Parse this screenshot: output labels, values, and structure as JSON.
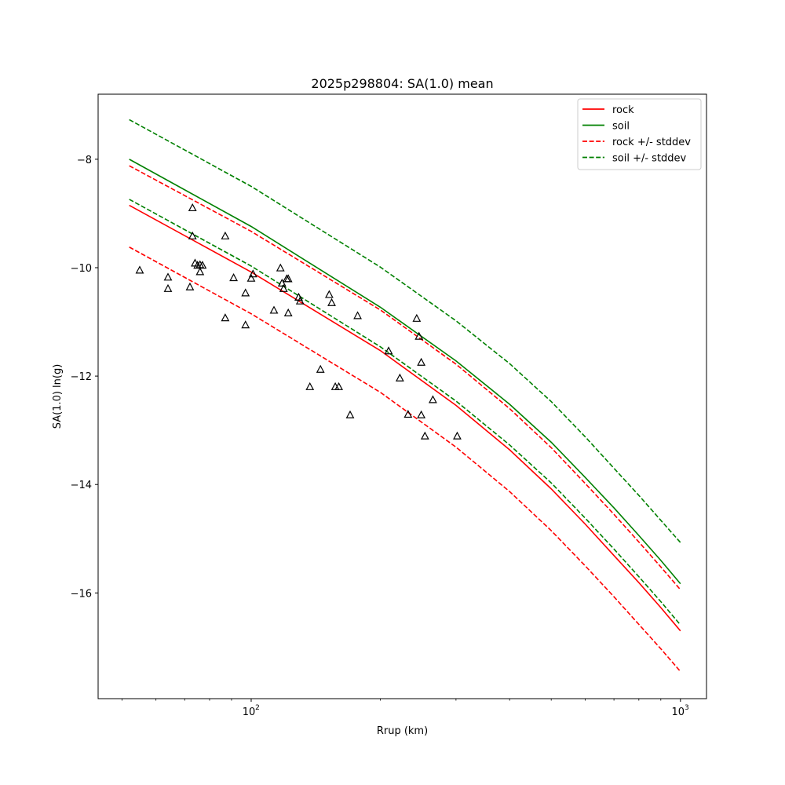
{
  "chart_data": {
    "type": "line",
    "title": "2025p298804: SA(1.0) mean",
    "xlabel": "Rrup (km)",
    "ylabel": "SA(1.0) ln(g)",
    "xscale": "log",
    "xlim": [
      44,
      1150
    ],
    "ylim": [
      -17.95,
      -6.8
    ],
    "x_ticks": [
      {
        "value": 100,
        "label": "10",
        "exp": "2"
      },
      {
        "value": 1000,
        "label": "10",
        "exp": "3"
      }
    ],
    "y_ticks": [
      {
        "value": -8,
        "label": "−8"
      },
      {
        "value": -10,
        "label": "−10"
      },
      {
        "value": -12,
        "label": "−12"
      },
      {
        "value": -14,
        "label": "−14"
      },
      {
        "value": -16,
        "label": "−16"
      }
    ],
    "grid": false,
    "legend_position": "top-right",
    "series": [
      {
        "name": "rock",
        "color": "#ff0000",
        "style": "solid",
        "x": [
          52,
          100,
          200,
          300,
          400,
          500,
          600,
          700,
          800,
          900,
          1000
        ],
        "y": [
          -8.85,
          -10.08,
          -11.53,
          -12.54,
          -13.36,
          -14.08,
          -14.73,
          -15.31,
          -15.81,
          -16.27,
          -16.7
        ]
      },
      {
        "name": "soil",
        "color": "#008000",
        "style": "solid",
        "x": [
          52,
          100,
          200,
          300,
          400,
          500,
          600,
          700,
          800,
          900,
          1000
        ],
        "y": [
          -8.0,
          -9.24,
          -10.73,
          -11.72,
          -12.52,
          -13.22,
          -13.87,
          -14.43,
          -14.94,
          -15.4,
          -15.83
        ]
      },
      {
        "name": "rock +/- stddev",
        "color": "#ff0000",
        "style": "dashed",
        "x": [
          52,
          100,
          200,
          300,
          400,
          500,
          600,
          700,
          800,
          900,
          1000
        ],
        "y": [
          -8.12,
          -9.33,
          -10.78,
          -11.78,
          -12.6,
          -13.32,
          -13.98,
          -14.55,
          -15.06,
          -15.52,
          -15.94
        ]
      },
      {
        "name": "rock +/- stddev",
        "color": "#ff0000",
        "style": "dashed",
        "legend": false,
        "x": [
          52,
          100,
          200,
          300,
          400,
          500,
          600,
          700,
          800,
          900,
          1000
        ],
        "y": [
          -9.62,
          -10.85,
          -12.3,
          -13.31,
          -14.13,
          -14.85,
          -15.5,
          -16.07,
          -16.58,
          -17.03,
          -17.45
        ]
      },
      {
        "name": "soil +/- stddev",
        "color": "#008000",
        "style": "dashed",
        "x": [
          52,
          100,
          200,
          300,
          400,
          500,
          600,
          700,
          800,
          900,
          1000
        ],
        "y": [
          -7.27,
          -8.5,
          -9.99,
          -10.98,
          -11.77,
          -12.47,
          -13.12,
          -13.7,
          -14.2,
          -14.66,
          -15.07
        ]
      },
      {
        "name": "soil +/- stddev",
        "color": "#008000",
        "style": "dashed",
        "legend": false,
        "x": [
          52,
          100,
          200,
          300,
          400,
          500,
          600,
          700,
          800,
          900,
          1000
        ],
        "y": [
          -8.74,
          -9.97,
          -11.46,
          -12.46,
          -13.27,
          -13.97,
          -14.62,
          -15.19,
          -15.7,
          -16.16,
          -16.59
        ]
      }
    ],
    "observations": {
      "marker": "triangle-open",
      "color": "#000000",
      "points": [
        {
          "x": 55,
          "y": -10.05
        },
        {
          "x": 64,
          "y": -10.18
        },
        {
          "x": 64,
          "y": -10.39
        },
        {
          "x": 72,
          "y": -10.36
        },
        {
          "x": 73,
          "y": -8.9
        },
        {
          "x": 73,
          "y": -9.42
        },
        {
          "x": 74,
          "y": -9.92
        },
        {
          "x": 75,
          "y": -9.96
        },
        {
          "x": 76,
          "y": -9.95
        },
        {
          "x": 76,
          "y": -10.08
        },
        {
          "x": 77,
          "y": -9.96
        },
        {
          "x": 87,
          "y": -9.42
        },
        {
          "x": 87,
          "y": -10.93
        },
        {
          "x": 91,
          "y": -10.19
        },
        {
          "x": 97,
          "y": -10.47
        },
        {
          "x": 97,
          "y": -11.06
        },
        {
          "x": 100,
          "y": -10.2
        },
        {
          "x": 101,
          "y": -10.12
        },
        {
          "x": 113,
          "y": -10.79
        },
        {
          "x": 117,
          "y": -10.01
        },
        {
          "x": 118,
          "y": -10.29
        },
        {
          "x": 119,
          "y": -10.39
        },
        {
          "x": 121,
          "y": -10.21
        },
        {
          "x": 122,
          "y": -10.21
        },
        {
          "x": 122,
          "y": -10.84
        },
        {
          "x": 129,
          "y": -10.55
        },
        {
          "x": 130,
          "y": -10.62
        },
        {
          "x": 137,
          "y": -12.2
        },
        {
          "x": 145,
          "y": -11.88
        },
        {
          "x": 152,
          "y": -10.5
        },
        {
          "x": 154,
          "y": -10.65
        },
        {
          "x": 157,
          "y": -12.2
        },
        {
          "x": 160,
          "y": -12.2
        },
        {
          "x": 170,
          "y": -12.72
        },
        {
          "x": 177,
          "y": -10.89
        },
        {
          "x": 209,
          "y": -11.54
        },
        {
          "x": 222,
          "y": -12.04
        },
        {
          "x": 232,
          "y": -12.71
        },
        {
          "x": 243,
          "y": -10.94
        },
        {
          "x": 246,
          "y": -11.27
        },
        {
          "x": 249,
          "y": -12.72
        },
        {
          "x": 249,
          "y": -11.75
        },
        {
          "x": 254,
          "y": -13.11
        },
        {
          "x": 265,
          "y": -12.44
        },
        {
          "x": 302,
          "y": -13.11
        }
      ]
    }
  }
}
